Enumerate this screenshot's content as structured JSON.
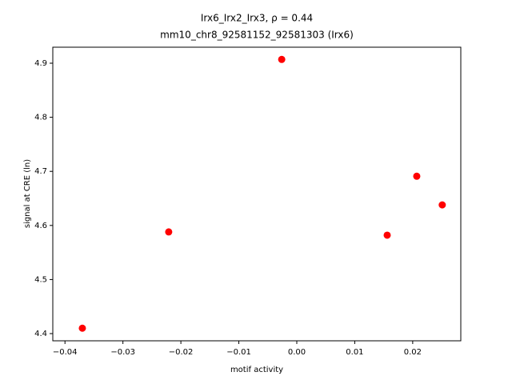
{
  "chart_data": {
    "type": "scatter",
    "title": "Irx6_Irx2_Irx3, ρ = 0.44",
    "subtitle": "mm10_chr8_92581152_92581303 (Irx6)",
    "x_label": "motif activity",
    "y_label": "signal at CRE (ln)",
    "color": "#ff0000",
    "x": [
      -0.037,
      -0.0221,
      -0.0026,
      0.0156,
      0.0207,
      0.0251
    ],
    "values": [
      4.41,
      4.588,
      4.907,
      4.582,
      4.691,
      4.638
    ],
    "xlim": [
      -0.0421,
      0.0283
    ],
    "ylim": [
      4.3867,
      4.9296
    ],
    "xticks": [
      {
        "value": -0.04,
        "label": "−0.04"
      },
      {
        "value": -0.03,
        "label": "−0.03"
      },
      {
        "value": -0.02,
        "label": "−0.02"
      },
      {
        "value": -0.01,
        "label": "−0.01"
      },
      {
        "value": 0,
        "label": "0.00"
      },
      {
        "value": 0.01,
        "label": "0.01"
      },
      {
        "value": 0.02,
        "label": "0.02"
      }
    ],
    "yticks": [
      4.4,
      4.5,
      4.6,
      4.7,
      4.8,
      4.9
    ],
    "grid": false
  }
}
